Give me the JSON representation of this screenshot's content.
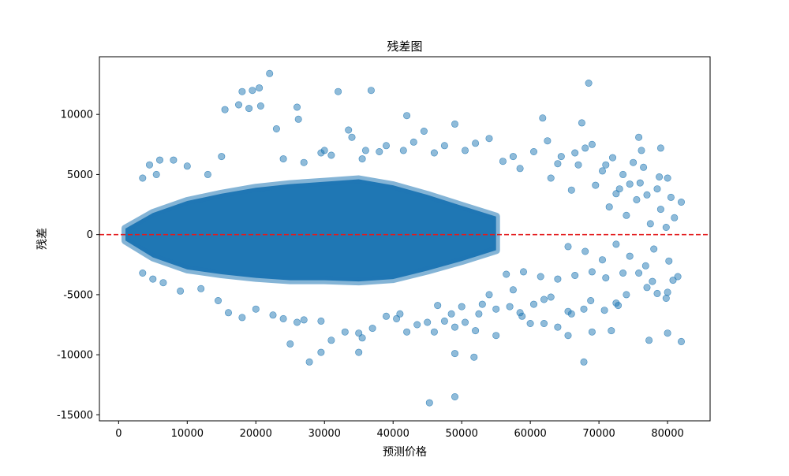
{
  "chart_data": {
    "type": "scatter",
    "title": "残差图",
    "xlabel": "预测价格",
    "ylabel": "残差",
    "xlim": [
      -2800,
      86200
    ],
    "ylim": [
      -15500,
      14800
    ],
    "x_ticks": [
      0,
      10000,
      20000,
      30000,
      40000,
      50000,
      60000,
      70000,
      80000
    ],
    "x_tick_labels": [
      "0",
      "10000",
      "20000",
      "30000",
      "40000",
      "50000",
      "60000",
      "70000",
      "80000"
    ],
    "y_ticks": [
      -15000,
      -10000,
      -5000,
      0,
      5000,
      10000
    ],
    "y_tick_labels": [
      "-15000",
      "-10000",
      "-5000",
      "0",
      "5000",
      "10000"
    ],
    "grid": false,
    "legend": "none",
    "reference_line": {
      "y": 0,
      "style": "dashed",
      "color": "#e31a1c"
    },
    "point_color": "#1f77b4",
    "point_alpha": 0.5,
    "dense_band": {
      "note": "main cloud of residuals",
      "x": [
        1000,
        5000,
        10000,
        15000,
        20000,
        25000,
        30000,
        35000,
        40000,
        45000,
        50000,
        55000
      ],
      "upper": [
        500,
        1800,
        2800,
        3400,
        3900,
        4200,
        4400,
        4600,
        4100,
        3300,
        2400,
        1500
      ],
      "lower": [
        -500,
        -1900,
        -2900,
        -3300,
        -3600,
        -3800,
        -3800,
        -3900,
        -3700,
        -3000,
        -2200,
        -1300
      ]
    },
    "series": [
      {
        "values": [
          [
            22000,
            13400
          ],
          [
            68500,
            12600
          ],
          [
            18000,
            11900
          ],
          [
            19500,
            12000
          ],
          [
            20500,
            12200
          ],
          [
            32000,
            11900
          ],
          [
            36800,
            12000
          ],
          [
            17500,
            10800
          ],
          [
            15500,
            10400
          ],
          [
            19000,
            10500
          ],
          [
            20700,
            10700
          ],
          [
            26000,
            10600
          ],
          [
            26200,
            9600
          ],
          [
            23000,
            8800
          ],
          [
            42000,
            9900
          ],
          [
            49000,
            9200
          ],
          [
            61800,
            9700
          ],
          [
            67500,
            9300
          ],
          [
            44500,
            8600
          ],
          [
            33500,
            8700
          ],
          [
            34000,
            8100
          ],
          [
            62500,
            7800
          ],
          [
            68000,
            7200
          ],
          [
            69000,
            7500
          ],
          [
            75800,
            8100
          ],
          [
            76200,
            7000
          ],
          [
            79000,
            7200
          ],
          [
            72000,
            6400
          ],
          [
            75000,
            6000
          ],
          [
            71000,
            5800
          ],
          [
            76500,
            5600
          ],
          [
            66500,
            6800
          ],
          [
            64500,
            6500
          ],
          [
            60500,
            6900
          ],
          [
            64000,
            5900
          ],
          [
            67000,
            5800
          ],
          [
            70500,
            5300
          ],
          [
            73500,
            5000
          ],
          [
            78800,
            4800
          ],
          [
            80000,
            4700
          ],
          [
            74500,
            4200
          ],
          [
            76000,
            4300
          ],
          [
            73000,
            3800
          ],
          [
            78500,
            3800
          ],
          [
            77000,
            3300
          ],
          [
            80500,
            3100
          ],
          [
            82000,
            2700
          ],
          [
            71500,
            2300
          ],
          [
            79000,
            2100
          ],
          [
            74000,
            1600
          ],
          [
            77500,
            900
          ],
          [
            79800,
            600
          ],
          [
            81000,
            1400
          ],
          [
            75500,
            2900
          ],
          [
            72500,
            3400
          ],
          [
            69500,
            4100
          ],
          [
            66000,
            3700
          ],
          [
            63000,
            4700
          ],
          [
            58500,
            5500
          ],
          [
            56000,
            6100
          ],
          [
            57500,
            6500
          ],
          [
            54000,
            8000
          ],
          [
            52000,
            7600
          ],
          [
            50500,
            7000
          ],
          [
            47500,
            7400
          ],
          [
            46000,
            6800
          ],
          [
            43000,
            7700
          ],
          [
            41500,
            7000
          ],
          [
            39000,
            7400
          ],
          [
            38000,
            6900
          ],
          [
            29500,
            6800
          ],
          [
            31000,
            6600
          ],
          [
            35500,
            6300
          ],
          [
            24000,
            6300
          ],
          [
            8000,
            6200
          ],
          [
            6000,
            6200
          ],
          [
            4500,
            5800
          ],
          [
            3500,
            4700
          ],
          [
            5500,
            5000
          ],
          [
            10000,
            5700
          ],
          [
            13000,
            5000
          ],
          [
            15000,
            6500
          ],
          [
            27000,
            6000
          ],
          [
            30000,
            7000
          ],
          [
            36000,
            7000
          ],
          [
            65500,
            -1000
          ],
          [
            68000,
            -1400
          ],
          [
            70500,
            -2100
          ],
          [
            72500,
            -800
          ],
          [
            74500,
            -1800
          ],
          [
            76800,
            -2600
          ],
          [
            78000,
            -1200
          ],
          [
            80200,
            -2200
          ],
          [
            81500,
            -3500
          ],
          [
            80800,
            -3800
          ],
          [
            77800,
            -3900
          ],
          [
            75800,
            -3200
          ],
          [
            73500,
            -3200
          ],
          [
            71000,
            -3600
          ],
          [
            69000,
            -3100
          ],
          [
            66500,
            -3400
          ],
          [
            64000,
            -3700
          ],
          [
            61500,
            -3500
          ],
          [
            59000,
            -3100
          ],
          [
            56500,
            -3300
          ],
          [
            78500,
            -4900
          ],
          [
            79800,
            -5300
          ],
          [
            80000,
            -4800
          ],
          [
            77000,
            -4400
          ],
          [
            74000,
            -5000
          ],
          [
            72500,
            -5700
          ],
          [
            70800,
            -6300
          ],
          [
            72800,
            -5900
          ],
          [
            68800,
            -5500
          ],
          [
            67800,
            -6200
          ],
          [
            66000,
            -6600
          ],
          [
            65500,
            -6400
          ],
          [
            63000,
            -5200
          ],
          [
            62000,
            -5400
          ],
          [
            60500,
            -5800
          ],
          [
            58500,
            -6500
          ],
          [
            57000,
            -6000
          ],
          [
            55000,
            -6200
          ],
          [
            53000,
            -5800
          ],
          [
            52500,
            -6600
          ],
          [
            80000,
            -8200
          ],
          [
            82000,
            -8900
          ],
          [
            77300,
            -8800
          ],
          [
            71800,
            -8000
          ],
          [
            69000,
            -8100
          ],
          [
            67800,
            -10600
          ],
          [
            65500,
            -8400
          ],
          [
            64000,
            -7700
          ],
          [
            62000,
            -7400
          ],
          [
            60000,
            -7400
          ],
          [
            58800,
            -6800
          ],
          [
            55000,
            -8400
          ],
          [
            52000,
            -8000
          ],
          [
            50500,
            -7300
          ],
          [
            49000,
            -7700
          ],
          [
            47500,
            -7200
          ],
          [
            46000,
            -8100
          ],
          [
            45000,
            -7300
          ],
          [
            43500,
            -7500
          ],
          [
            42000,
            -8100
          ],
          [
            40500,
            -7000
          ],
          [
            39000,
            -6800
          ],
          [
            35000,
            -8200
          ],
          [
            35500,
            -8600
          ],
          [
            33000,
            -8100
          ],
          [
            29500,
            -7200
          ],
          [
            27000,
            -7100
          ],
          [
            26000,
            -7300
          ],
          [
            24000,
            -7000
          ],
          [
            22500,
            -6700
          ],
          [
            20000,
            -6200
          ],
          [
            18000,
            -6900
          ],
          [
            16000,
            -6500
          ],
          [
            14500,
            -5500
          ],
          [
            12000,
            -4500
          ],
          [
            9000,
            -4700
          ],
          [
            6500,
            -4000
          ],
          [
            5000,
            -3700
          ],
          [
            3500,
            -3200
          ],
          [
            25000,
            -9100
          ],
          [
            27800,
            -10600
          ],
          [
            29500,
            -9800
          ],
          [
            35000,
            -9800
          ],
          [
            49000,
            -9900
          ],
          [
            51800,
            -10200
          ],
          [
            45300,
            -14000
          ],
          [
            49000,
            -13500
          ],
          [
            31000,
            -8800
          ],
          [
            37000,
            -7800
          ],
          [
            41000,
            -6600
          ],
          [
            46500,
            -5900
          ],
          [
            48500,
            -6600
          ],
          [
            50000,
            -6000
          ],
          [
            54000,
            -5000
          ],
          [
            57500,
            -4600
          ]
        ]
      }
    ]
  }
}
